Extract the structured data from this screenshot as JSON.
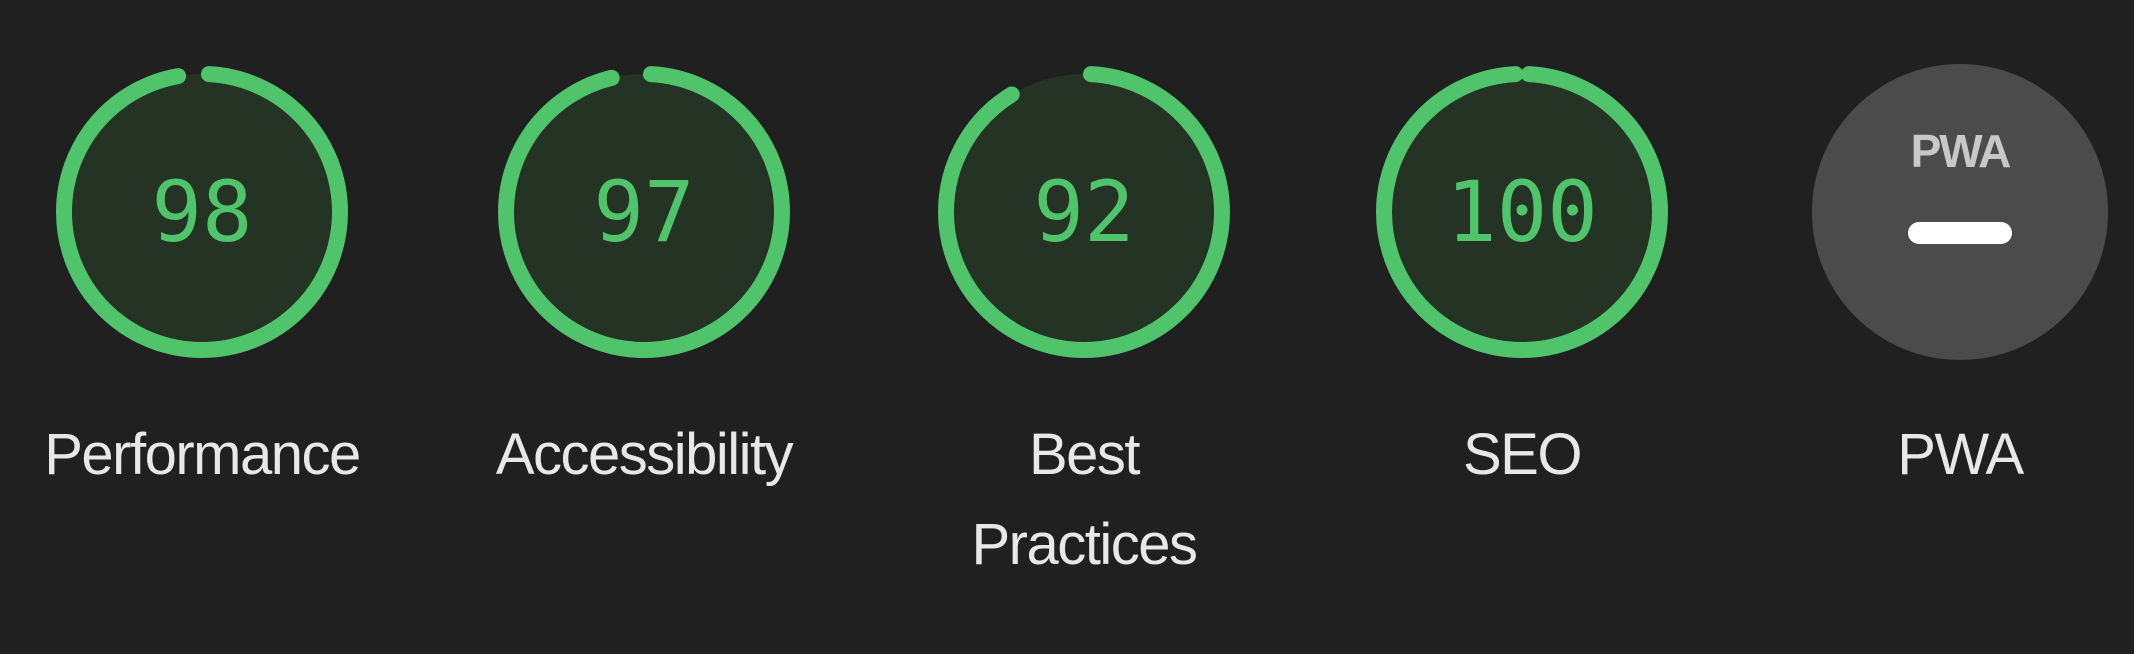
{
  "colors": {
    "background": "#202020",
    "pass": "#4fc46b",
    "pass_fill": "#243324",
    "label": "#e8e8e8",
    "pwa_badge": "#4b4b4b"
  },
  "categories": [
    {
      "id": "performance",
      "score": "98",
      "fraction": 0.98,
      "label": "Performance"
    },
    {
      "id": "accessibility",
      "score": "97",
      "fraction": 0.97,
      "label": "Accessibility"
    },
    {
      "id": "best-practices",
      "score": "92",
      "fraction": 0.92,
      "label": "Best Practices"
    },
    {
      "id": "seo",
      "score": "100",
      "fraction": 1.0,
      "label": "SEO"
    }
  ],
  "pwa": {
    "logo_text": "PWA",
    "label": "PWA",
    "icon": "pwa-dash-icon"
  }
}
